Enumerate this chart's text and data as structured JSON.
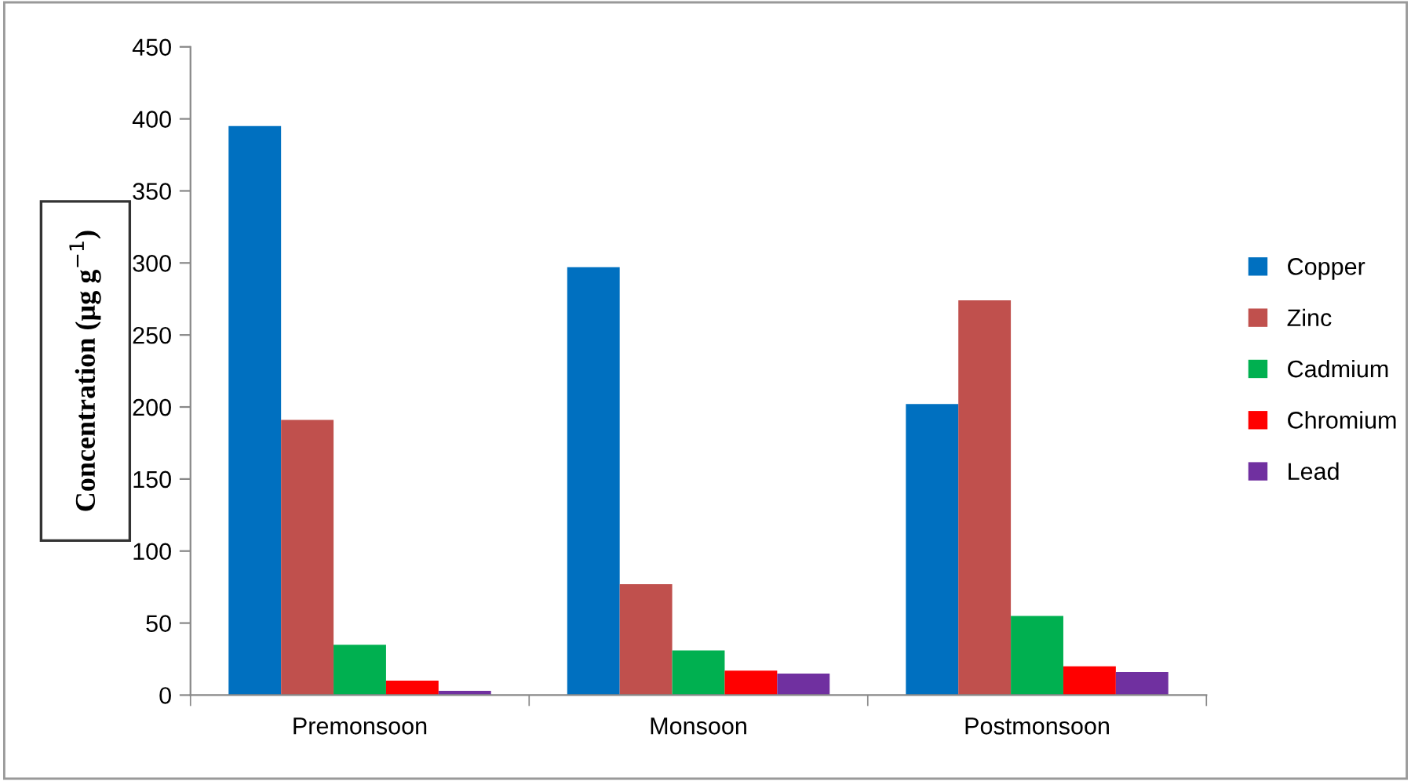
{
  "chart_data": {
    "type": "bar",
    "ylabel": "Concentration (µg g$^{−1}$)",
    "categories": [
      "Premonsoon",
      "Monsoon",
      "Postmonsoon"
    ],
    "series": [
      {
        "name": "Copper",
        "color": "#0070c0",
        "values": [
          395,
          297,
          202
        ]
      },
      {
        "name": "Zinc",
        "color": "#c0504d",
        "values": [
          191,
          77,
          274
        ]
      },
      {
        "name": "Cadmium",
        "color": "#00b050",
        "values": [
          35,
          31,
          55
        ]
      },
      {
        "name": "Chromium",
        "color": "#ff0000",
        "values": [
          10,
          17,
          20
        ]
      },
      {
        "name": "Lead",
        "color": "#7030a0",
        "values": [
          3,
          15,
          16
        ]
      }
    ],
    "ylim": [
      0,
      450
    ],
    "yticks": [
      0,
      50,
      100,
      150,
      200,
      250,
      300,
      350,
      400,
      450
    ],
    "grid": false,
    "legend": "right"
  }
}
